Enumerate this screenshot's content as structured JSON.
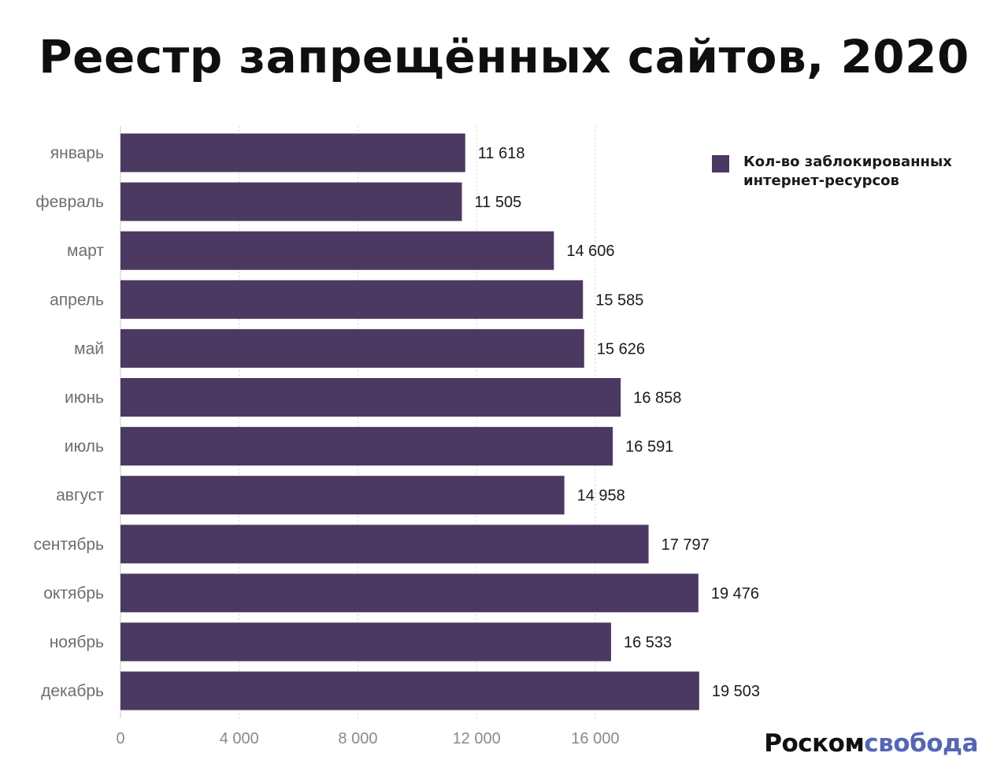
{
  "colors": {
    "bar": "#4b3962",
    "grid": "#d3d3d3",
    "category_label": "#6e6e6e",
    "tick_label": "#8a8a8a",
    "value_label": "#1a1a1a",
    "brand_accent": "#5566b3"
  },
  "brand": {
    "part1": "Роском",
    "part2": "свобода"
  },
  "chart_data": {
    "type": "bar",
    "orientation": "horizontal",
    "title": "Реестр запрещённых сайтов, 2020",
    "categories": [
      "январь",
      "февраль",
      "март",
      "апрель",
      "май",
      "июнь",
      "июль",
      "август",
      "сентябрь",
      "октябрь",
      "ноябрь",
      "декабрь"
    ],
    "series": [
      {
        "name": "Кол-во заблокированных интернет-ресурсов",
        "values": [
          11618,
          11505,
          14606,
          15585,
          15626,
          16858,
          16591,
          14958,
          17797,
          19476,
          16533,
          19503
        ]
      }
    ],
    "value_labels": [
      "11 618",
      "11 505",
      "14 606",
      "15 585",
      "15 626",
      "16 858",
      "16 591",
      "14 958",
      "17 797",
      "19 476",
      "16 533",
      "19 503"
    ],
    "xlim": [
      0,
      20000
    ],
    "x_ticks": [
      0,
      4000,
      8000,
      12000,
      16000
    ],
    "x_tick_labels": [
      "0",
      "4 000",
      "8 000",
      "12 000",
      "16 000"
    ],
    "grid": true,
    "legend_position": "top-right"
  }
}
